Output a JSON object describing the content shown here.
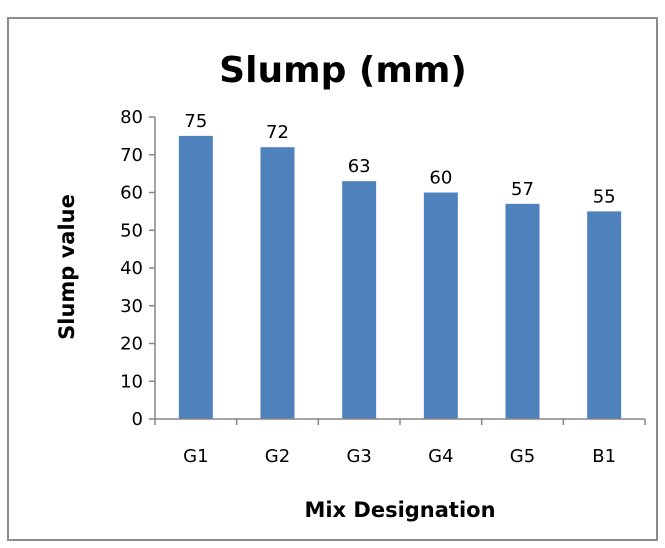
{
  "chart_data": {
    "type": "bar",
    "title": "Slump (mm)",
    "xlabel": "Mix Designation",
    "ylabel": "Slump value",
    "categories": [
      "G1",
      "G2",
      "G3",
      "G4",
      "G5",
      "B1"
    ],
    "values": [
      75,
      72,
      63,
      60,
      57,
      55
    ],
    "ylim": [
      0,
      80
    ],
    "yticks": [
      0,
      10,
      20,
      30,
      40,
      50,
      60,
      70,
      80
    ],
    "grid": false,
    "legend": "none",
    "data_labels": true,
    "colors": {
      "bar": "#4F81BD",
      "axis": "#868686",
      "frame": "#8c8c8c"
    }
  }
}
